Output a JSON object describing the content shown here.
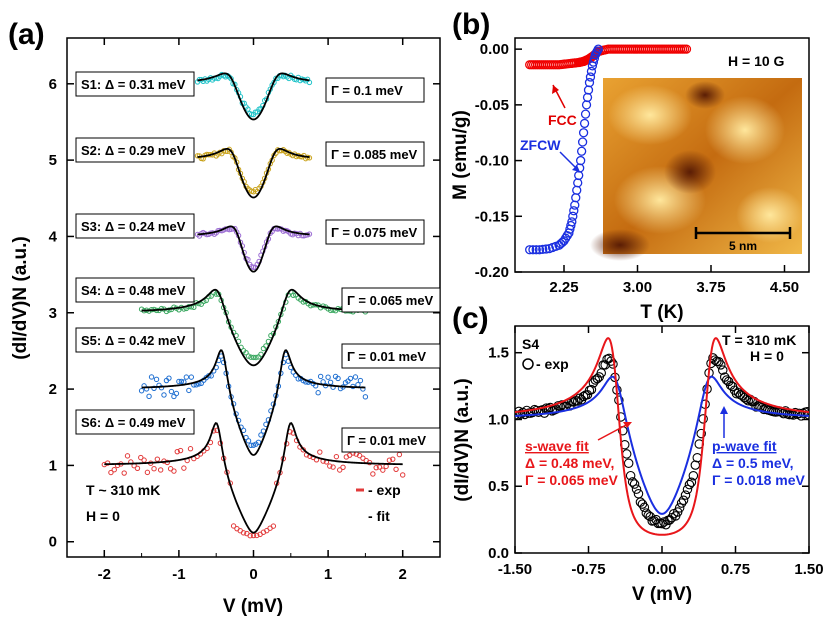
{
  "colors": {
    "cyan": "#1fc3c9",
    "gold": "#c9a21a",
    "purple": "#9b6cd3",
    "green": "#3aa860",
    "blue": "#1f6fd1",
    "red": "#e23a3a",
    "fit": "#000000",
    "redfit": "#e8161a",
    "bluefit": "#1a2fe0",
    "circleblue": "#1a2fe0",
    "circlered": "#f00000"
  },
  "chart_data": [
    {
      "panel": "(a)",
      "type": "scatter",
      "xlabel": "V (mV)",
      "ylabel": "(dI/dV)N (a.u.)",
      "xlim": [
        -2.5,
        2.5
      ],
      "ylim": [
        -0.2,
        6.6
      ],
      "xticks": [
        "-2",
        "-1",
        "0",
        "1",
        "2"
      ],
      "yticks": [
        "0",
        "1",
        "2",
        "3",
        "4",
        "5",
        "6"
      ],
      "series": [
        {
          "name": "S6",
          "offset": 0.0,
          "delta": 0.49,
          "gamma": 0.01,
          "base": 1.0,
          "xmin": -2.0,
          "xmax": 2.0,
          "color": "red",
          "left_label": "S6: Δ = 0.49 meV",
          "right_label": "Γ = 0.01 meV"
        },
        {
          "name": "S5",
          "offset": 1.0,
          "delta": 0.42,
          "gamma": 0.01,
          "base": 1.0,
          "xmin": -1.5,
          "xmax": 1.5,
          "color": "blue",
          "left_label": "S5: Δ = 0.42 meV",
          "right_label": "Γ = 0.01 meV"
        },
        {
          "name": "S4",
          "offset": 2.0,
          "delta": 0.48,
          "gamma": 0.065,
          "base": 1.0,
          "xmin": -1.5,
          "xmax": 1.5,
          "color": "green",
          "left_label": "S4: Δ = 0.48 meV",
          "right_label": "Γ = 0.065 meV"
        },
        {
          "name": "S3",
          "offset": 3.0,
          "delta": 0.24,
          "gamma": 0.075,
          "base": 1.0,
          "xmin": -0.75,
          "xmax": 0.75,
          "color": "purple",
          "left_label": "S3: Δ = 0.24 meV",
          "right_label": "Γ = 0.075 meV"
        },
        {
          "name": "S2",
          "offset": 4.0,
          "delta": 0.29,
          "gamma": 0.085,
          "base": 1.0,
          "xmin": -0.75,
          "xmax": 0.75,
          "color": "gold",
          "left_label": "S2: Δ = 0.29 meV",
          "right_label": "Γ = 0.085 meV"
        },
        {
          "name": "S1",
          "offset": 5.0,
          "delta": 0.31,
          "gamma": 0.1,
          "base": 1.0,
          "xmin": -0.75,
          "xmax": 0.75,
          "color": "cyan",
          "left_label": "S1: Δ = 0.31 meV",
          "right_label": "Γ = 0.1 meV"
        }
      ],
      "annotations": {
        "temp": "T ~ 310 mK",
        "field": "H = 0",
        "legend_exp": "- exp",
        "legend_fit": "- fit"
      }
    },
    {
      "panel": "(b)",
      "type": "scatter",
      "xlabel": "T (K)",
      "ylabel": "M (emu/g)",
      "xlim": [
        1.75,
        4.75
      ],
      "ylim": [
        -0.2,
        0.01
      ],
      "xticks": [
        "2.25",
        "3.00",
        "3.75",
        "4.50"
      ],
      "yticks": [
        "0.00",
        "-0.05",
        "-0.10",
        "-0.15",
        "-0.20"
      ],
      "series": [
        {
          "name": "FCC",
          "color": "circlered",
          "x": [
            1.9,
            2.0,
            2.1,
            2.2,
            2.3,
            2.4,
            2.45,
            2.5,
            2.55,
            2.6,
            2.7,
            2.8,
            2.9,
            3.0,
            3.1,
            3.2,
            3.3,
            3.4,
            3.5
          ],
          "y": [
            -0.014,
            -0.014,
            -0.014,
            -0.014,
            -0.013,
            -0.012,
            -0.011,
            -0.009,
            -0.006,
            -0.002,
            0.0,
            0.0,
            0.0,
            0.0,
            0.0,
            0.0,
            0.0,
            0.0,
            0.0
          ]
        },
        {
          "name": "ZFCW",
          "color": "circleblue",
          "x": [
            1.9,
            2.0,
            2.1,
            2.2,
            2.25,
            2.3,
            2.33,
            2.36,
            2.39,
            2.42,
            2.45,
            2.48,
            2.51,
            2.54,
            2.57,
            2.6
          ],
          "y": [
            -0.18,
            -0.18,
            -0.179,
            -0.176,
            -0.172,
            -0.165,
            -0.155,
            -0.14,
            -0.12,
            -0.1,
            -0.075,
            -0.05,
            -0.03,
            -0.015,
            -0.005,
            0.0
          ]
        }
      ],
      "annotations": {
        "field": "H = 10 G",
        "fcc_label": "FCC",
        "zfcw_label": "ZFCW",
        "scale_bar": "5 nm"
      }
    },
    {
      "panel": "(c)",
      "type": "scatter",
      "xlabel": "V (mV)",
      "ylabel": "(dI/dV)N (a.u.)",
      "xlim": [
        -1.5,
        1.5
      ],
      "ylim": [
        0.0,
        1.7
      ],
      "xticks": [
        "-1.50",
        "-0.75",
        "0.00",
        "0.75",
        "1.50"
      ],
      "yticks": [
        "0.0",
        "0.5",
        "1.0",
        "1.5"
      ],
      "series": [
        {
          "name": "exp",
          "type": "points"
        },
        {
          "name": "s-wave fit",
          "delta": 0.48,
          "gamma": 0.065,
          "color": "redfit"
        },
        {
          "name": "p-wave fit",
          "delta": 0.5,
          "gamma": 0.018,
          "color": "bluefit"
        }
      ],
      "annotations": {
        "sample": "S4",
        "exp": "- exp",
        "temp": "T = 310 mK",
        "field": "H = 0",
        "swave_title": "s-wave fit",
        "swave_delta": "Δ = 0.48 meV,",
        "swave_gamma": "Γ = 0.065 meV",
        "pwave_title": "p-wave fit",
        "pwave_delta": "Δ = 0.5 meV,",
        "pwave_gamma": "Γ = 0.018 meV"
      }
    }
  ]
}
